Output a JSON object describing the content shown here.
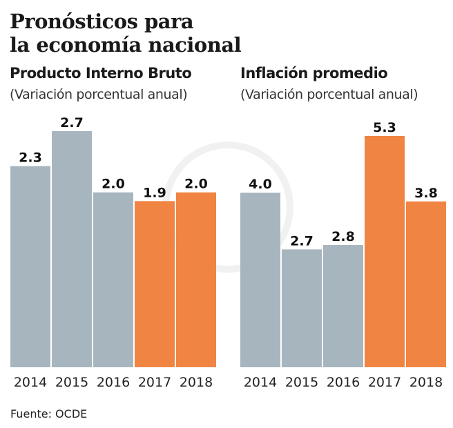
{
  "title_line1": "Pronósticos para",
  "title_line2": "la economía nacional",
  "source": "Fuente: OCDE",
  "colors": {
    "historical": "#a7b5bf",
    "forecast": "#f08442"
  },
  "chart_data": [
    {
      "type": "bar",
      "title": "Producto Interno Bruto",
      "subtitle": "(Variación porcentual anual)",
      "categories": [
        "2014",
        "2015",
        "2016",
        "2017",
        "2018"
      ],
      "values": [
        2.3,
        2.7,
        2.0,
        1.9,
        2.0
      ],
      "labels": [
        "2.3",
        "2.7",
        "2.0",
        "1.9",
        "2.0"
      ],
      "forecast": [
        false,
        false,
        false,
        true,
        true
      ],
      "ylim": [
        0,
        2.7
      ]
    },
    {
      "type": "bar",
      "title": "Inflación promedio",
      "subtitle": "(Variación porcentual anual)",
      "categories": [
        "2014",
        "2015",
        "2016",
        "2017",
        "2018"
      ],
      "values": [
        4.0,
        2.7,
        2.8,
        5.3,
        3.8
      ],
      "labels": [
        "4.0",
        "2.7",
        "2.8",
        "5.3",
        "3.8"
      ],
      "forecast": [
        false,
        false,
        false,
        true,
        true
      ],
      "ylim": [
        0,
        5.3
      ]
    }
  ]
}
